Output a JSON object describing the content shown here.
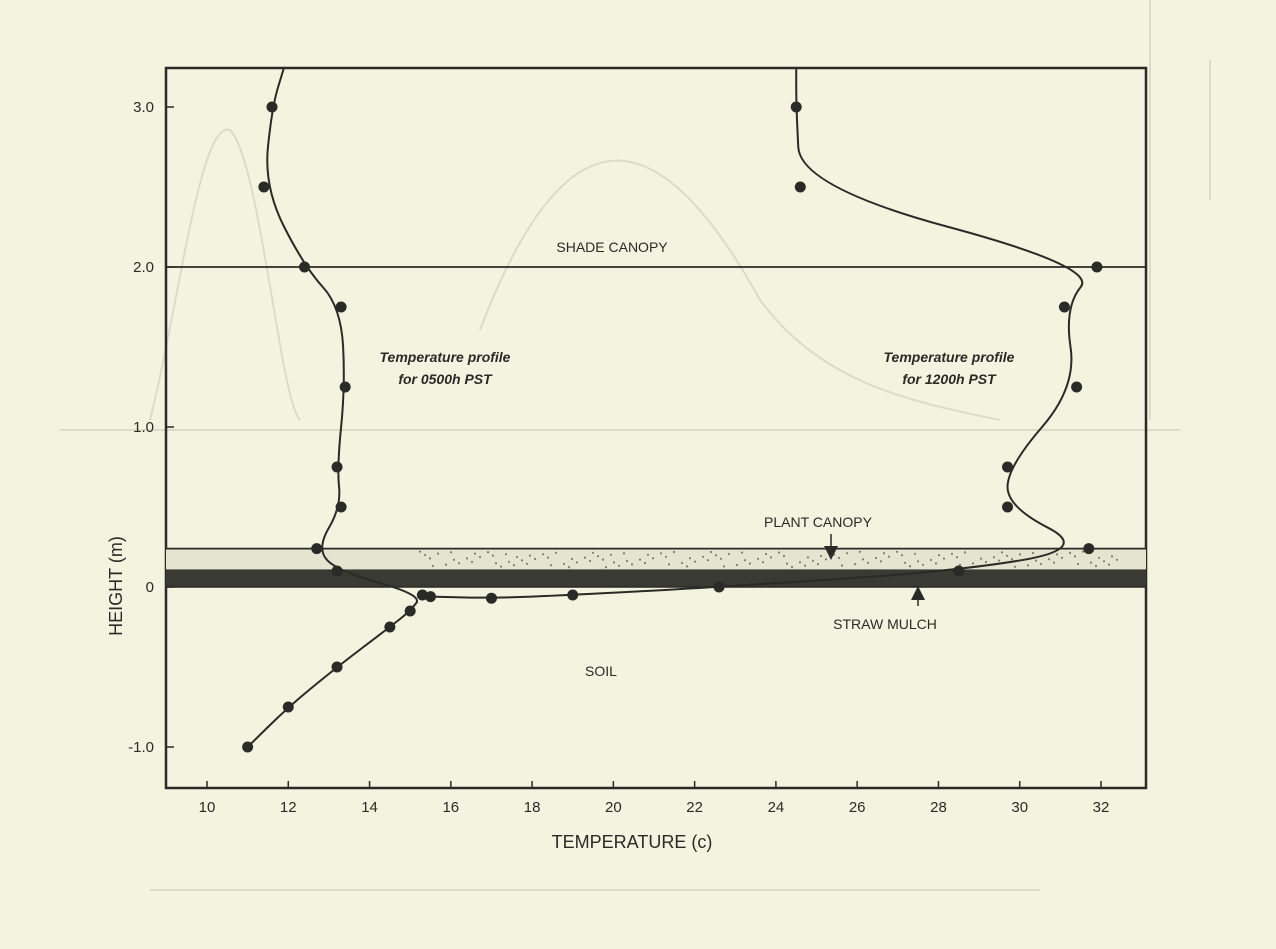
{
  "chart_data": {
    "type": "line",
    "xlabel": "TEMPERATURE (c)",
    "ylabel": "HEIGHT (m)",
    "xlim": [
      9,
      33
    ],
    "ylim": [
      -1.25,
      3.25
    ],
    "x_ticks": [
      10,
      12,
      14,
      16,
      18,
      20,
      22,
      24,
      26,
      28,
      30,
      32
    ],
    "y_ticks": [
      {
        "value": 3.0,
        "label": "3.0"
      },
      {
        "value": 2.0,
        "label": "2.0"
      },
      {
        "value": 1.0,
        "label": "1.0"
      },
      {
        "value": 0,
        "label": "0"
      },
      {
        "value": -1.0,
        "label": "-1.0"
      }
    ],
    "grid": false,
    "layers": [
      {
        "name": "SHADE CANOPY",
        "height": 2.0
      },
      {
        "name": "PLANT CANOPY",
        "height": 0.24
      },
      {
        "name": "STRAW MULCH",
        "height_range": [
          0.0,
          0.11
        ]
      },
      {
        "name": "SOIL",
        "height_range": [
          -1.25,
          0.0
        ]
      }
    ],
    "series": [
      {
        "label_line1": "Temperature profile",
        "label_line2": "for 0500h PST",
        "points": [
          [
            11.9,
            3.25
          ],
          [
            11.6,
            3.0
          ],
          [
            11.4,
            2.5
          ],
          [
            12.4,
            2.0
          ],
          [
            13.3,
            1.75
          ],
          [
            13.4,
            1.25
          ],
          [
            13.2,
            0.75
          ],
          [
            13.3,
            0.5
          ],
          [
            12.7,
            0.24
          ],
          [
            13.2,
            0.1
          ],
          [
            15.3,
            -0.05
          ],
          [
            15.0,
            -0.15
          ],
          [
            14.5,
            -0.25
          ],
          [
            13.2,
            -0.5
          ],
          [
            12.0,
            -0.75
          ],
          [
            11.0,
            -1.0
          ]
        ]
      },
      {
        "label_line1": "Temperature profile",
        "label_line2": "for 1200h PST",
        "points": [
          [
            24.5,
            3.25
          ],
          [
            24.5,
            3.0
          ],
          [
            24.6,
            2.5
          ],
          [
            31.9,
            2.0
          ],
          [
            31.1,
            1.75
          ],
          [
            31.4,
            1.25
          ],
          [
            29.7,
            0.75
          ],
          [
            29.7,
            0.5
          ],
          [
            31.7,
            0.24
          ],
          [
            28.5,
            0.1
          ],
          [
            22.6,
            0.0
          ],
          [
            19.0,
            -0.05
          ],
          [
            17.0,
            -0.07
          ],
          [
            15.5,
            -0.06
          ]
        ]
      }
    ],
    "annotations": {
      "shade_canopy": "SHADE CANOPY",
      "plant_canopy": "PLANT CANOPY",
      "straw_mulch": "STRAW MULCH",
      "soil": "SOIL"
    },
    "colors": {
      "ink": "#2a2a26",
      "paper": "#f3f3e0",
      "mulch": "#3a3a34"
    }
  }
}
